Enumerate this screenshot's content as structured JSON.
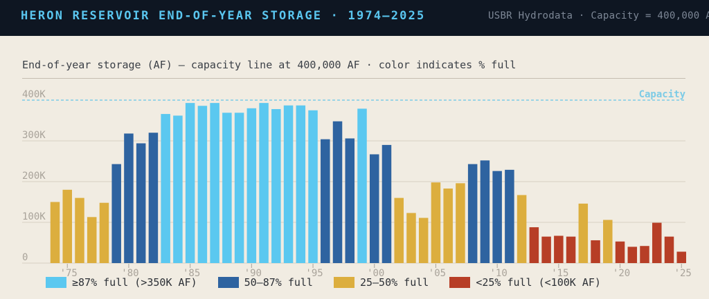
{
  "header": {
    "title": "HERON RESERVOIR END-OF-YEAR STORAGE · 1974–2025",
    "source": "USBR Hydrodata · Capacity = 400,000 AF"
  },
  "subtitle": "End-of-year storage (AF) — capacity line at 400,000 AF · color indicates % full",
  "colors": {
    "high": "#5bc8f0",
    "mid": "#2e63a0",
    "low": "#dcae3e",
    "crit": "#b73e26",
    "grid": "#d6cfc2",
    "capacity": "#7ccbe6",
    "tick": "#a9a39a"
  },
  "legend": [
    {
      "label": "≥87% full (>350K AF)",
      "color_key": "high"
    },
    {
      "label": "50–87% full",
      "color_key": "mid"
    },
    {
      "label": "25–50% full",
      "color_key": "low"
    },
    {
      "label": "<25% full (<100K AF)",
      "color_key": "crit"
    }
  ],
  "chart_data": {
    "type": "bar",
    "ylim": [
      0,
      400000
    ],
    "yticks": [
      {
        "value": 0,
        "label": "0"
      },
      {
        "value": 100000,
        "label": "100K"
      },
      {
        "value": 200000,
        "label": "200K"
      },
      {
        "value": 300000,
        "label": "300K"
      },
      {
        "value": 400000,
        "label": "400K"
      }
    ],
    "capacity": {
      "value": 400000,
      "label": "Capacity"
    },
    "xticks": [
      {
        "year": 1975,
        "label": "'75"
      },
      {
        "year": 1980,
        "label": "'80"
      },
      {
        "year": 1985,
        "label": "'85"
      },
      {
        "year": 1990,
        "label": "'90"
      },
      {
        "year": 1995,
        "label": "'95"
      },
      {
        "year": 2000,
        "label": "'00"
      },
      {
        "year": 2005,
        "label": "'05"
      },
      {
        "year": 2010,
        "label": "'10"
      },
      {
        "year": 2015,
        "label": "'15"
      },
      {
        "year": 2020,
        "label": "'20"
      },
      {
        "year": 2025,
        "label": "'25"
      }
    ],
    "years": [
      1974,
      1975,
      1976,
      1977,
      1978,
      1979,
      1980,
      1981,
      1982,
      1983,
      1984,
      1985,
      1986,
      1987,
      1988,
      1989,
      1990,
      1991,
      1992,
      1993,
      1994,
      1995,
      1996,
      1997,
      1998,
      1999,
      2000,
      2001,
      2002,
      2003,
      2004,
      2005,
      2006,
      2007,
      2008,
      2009,
      2010,
      2011,
      2012,
      2013,
      2014,
      2015,
      2016,
      2017,
      2018,
      2019,
      2020,
      2021,
      2022,
      2023,
      2024,
      2025
    ],
    "values": [
      150000,
      180000,
      160000,
      113000,
      148000,
      243000,
      318000,
      294000,
      320000,
      366000,
      362000,
      393000,
      386000,
      393000,
      369000,
      369000,
      380000,
      393000,
      378000,
      387000,
      387000,
      375000,
      304000,
      348000,
      306000,
      379000,
      267000,
      290000,
      160000,
      123000,
      111000,
      198000,
      183000,
      196000,
      243000,
      252000,
      226000,
      229000,
      167000,
      88000,
      65000,
      67000,
      65000,
      146000,
      56000,
      106000,
      53000,
      40000,
      42000,
      99000,
      65000,
      28000
    ]
  }
}
